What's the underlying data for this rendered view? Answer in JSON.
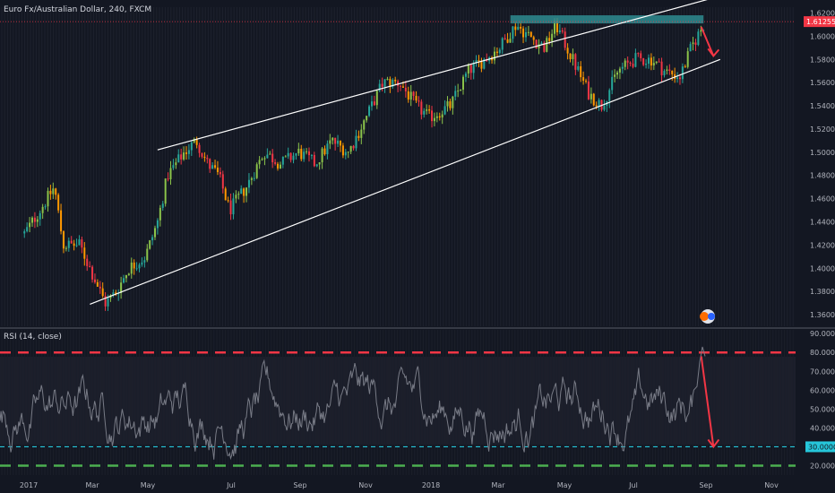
{
  "chart_data": [
    {
      "type": "candlestick",
      "title": "Euro Fx/Australian Dollar, 240, FXCM",
      "symbol": "Euro Fx/Australian Dollar",
      "interval": "240",
      "source": "FXCM",
      "last_price": "1.61255",
      "ylim": [
        1.35,
        1.625
      ],
      "y_ticks": [
        "1.62000",
        "1.60000",
        "1.58000",
        "1.56000",
        "1.54000",
        "1.52000",
        "1.50000",
        "1.48000",
        "1.46000",
        "1.44000",
        "1.42000",
        "1.40000",
        "1.38000",
        "1.36000"
      ],
      "x_ticks": [
        "2017",
        "Mar",
        "May",
        "Jul",
        "Sep",
        "Nov",
        "2018",
        "Mar",
        "May",
        "Jul",
        "Sep",
        "Nov"
      ],
      "price_path": [
        [
          "2017-01-01",
          1.43
        ],
        [
          "2017-01-15",
          1.45
        ],
        [
          "2017-01-28",
          1.47
        ],
        [
          "2017-02-05",
          1.42
        ],
        [
          "2017-02-20",
          1.42
        ],
        [
          "2017-03-01",
          1.4
        ],
        [
          "2017-03-15",
          1.37
        ],
        [
          "2017-03-25",
          1.38
        ],
        [
          "2017-04-05",
          1.4
        ],
        [
          "2017-04-20",
          1.41
        ],
        [
          "2017-05-01",
          1.44
        ],
        [
          "2017-05-10",
          1.48
        ],
        [
          "2017-05-25",
          1.5
        ],
        [
          "2017-06-05",
          1.51
        ],
        [
          "2017-06-15",
          1.49
        ],
        [
          "2017-06-25",
          1.48
        ],
        [
          "2017-07-05",
          1.45
        ],
        [
          "2017-07-20",
          1.47
        ],
        [
          "2017-08-05",
          1.5
        ],
        [
          "2017-08-20",
          1.49
        ],
        [
          "2017-09-05",
          1.5
        ],
        [
          "2017-09-20",
          1.49
        ],
        [
          "2017-10-05",
          1.51
        ],
        [
          "2017-10-20",
          1.5
        ],
        [
          "2017-11-05",
          1.53
        ],
        [
          "2017-11-20",
          1.56
        ],
        [
          "2017-12-05",
          1.56
        ],
        [
          "2017-12-20",
          1.54
        ],
        [
          "2018-01-01",
          1.53
        ],
        [
          "2018-01-20",
          1.54
        ],
        [
          "2018-02-05",
          1.57
        ],
        [
          "2018-02-20",
          1.58
        ],
        [
          "2018-03-05",
          1.59
        ],
        [
          "2018-03-20",
          1.61
        ],
        [
          "2018-04-01",
          1.6
        ],
        [
          "2018-04-15",
          1.59
        ],
        [
          "2018-04-25",
          1.61
        ],
        [
          "2018-05-05",
          1.59
        ],
        [
          "2018-05-15",
          1.57
        ],
        [
          "2018-05-25",
          1.55
        ],
        [
          "2018-06-05",
          1.54
        ],
        [
          "2018-06-20",
          1.57
        ],
        [
          "2018-07-05",
          1.58
        ],
        [
          "2018-07-20",
          1.58
        ],
        [
          "2018-08-01",
          1.57
        ],
        [
          "2018-08-15",
          1.565
        ],
        [
          "2018-08-25",
          1.59
        ],
        [
          "2018-09-05",
          1.61
        ]
      ],
      "channel": {
        "upper": [
          [
            "2017-05-01",
            1.502
          ],
          [
            "2018-09-10",
            1.632
          ]
        ],
        "lower": [
          [
            "2017-03-01",
            1.369
          ],
          [
            "2018-09-20",
            1.58
          ]
        ]
      },
      "resistance_zone": {
        "from": "2018-03-15",
        "to": "2018-09-05",
        "ylow": 1.611,
        "yhigh": 1.618,
        "color": "#2e8b8f"
      },
      "last_price_line": {
        "value": 1.61255,
        "color": "#f23645"
      },
      "arrow": {
        "from": [
          "2018-09-03",
          1.608
        ],
        "to": [
          "2018-09-14",
          1.583
        ],
        "color": "#f23645"
      },
      "colors": {
        "bg": "#131722",
        "up": "#26a69a",
        "up_mid": "#8bc34a",
        "down": "#f23645",
        "down_mid": "#ff9800",
        "channel": "#ffffff",
        "grid": "#2a2e39"
      }
    },
    {
      "type": "line",
      "title": "RSI (14, close)",
      "ylim": [
        15,
        92
      ],
      "y_ticks": [
        "90.0000",
        "80.0000",
        "70.0000",
        "60.0000",
        "50.0000",
        "40.0000",
        "30.0000",
        "20.0000"
      ],
      "levels": [
        {
          "value": 80,
          "color": "#f23645",
          "style": "dashed"
        },
        {
          "value": 30,
          "color": "#26c6da",
          "style": "dashed",
          "label": "30.0000"
        },
        {
          "value": 20,
          "color": "#4caf50",
          "style": "dashed"
        }
      ],
      "series_color": "#787b86",
      "arrow": {
        "from": [
          "2018-09-03",
          78
        ],
        "to": [
          "2018-09-14",
          30
        ],
        "color": "#f23645"
      }
    }
  ]
}
